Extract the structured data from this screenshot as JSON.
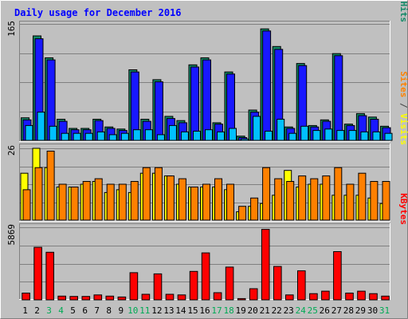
{
  "chart_data": {
    "type": "bar",
    "title": "Daily usage for December 2016",
    "days": [
      "1",
      "2",
      "3",
      "4",
      "5",
      "6",
      "7",
      "8",
      "9",
      "10",
      "11",
      "12",
      "13",
      "14",
      "15",
      "16",
      "17",
      "18",
      "19",
      "20",
      "21",
      "22",
      "23",
      "24",
      "25",
      "26",
      "27",
      "28",
      "29",
      "30",
      "31"
    ],
    "weekend_days": [
      "3",
      "4",
      "10",
      "11",
      "17",
      "18",
      "24",
      "25",
      "31"
    ],
    "panels": [
      {
        "id": "top",
        "max_label": "165",
        "ylim": [
          0,
          165
        ],
        "right_label_parts": [
          {
            "text": "Pages",
            "color": "#00c0ff"
          },
          {
            "text": " / ",
            "color": "#444444"
          },
          {
            "text": "Files",
            "color": "#1818ff"
          },
          {
            "text": " / ",
            "color": "#444444"
          },
          {
            "text": "Hits",
            "color": "#118866"
          }
        ],
        "series": [
          {
            "key": "hits",
            "color": "#118866",
            "values": [
              32,
              148,
              117,
              30,
              17,
              17,
              30,
              19,
              16,
              100,
              30,
              86,
              34,
              28,
              107,
              117,
              25,
              97,
              6,
              43,
              158,
              133,
              19,
              109,
              21,
              29,
              123,
              23,
              38,
              33,
              20
            ]
          },
          {
            "key": "files",
            "color": "#1818ff",
            "values": [
              29,
              144,
              114,
              27,
              15,
              15,
              28,
              17,
              14,
              97,
              27,
              83,
              31,
              25,
              104,
              114,
              23,
              94,
              4,
              40,
              155,
              129,
              17,
              106,
              19,
              27,
              120,
              21,
              35,
              30,
              18
            ]
          },
          {
            "key": "pages",
            "color": "#00c0ff",
            "values": [
              21,
              40,
              20,
              10,
              10,
              10,
              12,
              8,
              10,
              15,
              15,
              8,
              21,
              12,
              13,
              15,
              12,
              17,
              2,
              34,
              13,
              30,
              10,
              20,
              14,
              16,
              14,
              14,
              12,
              12,
              10
            ]
          }
        ]
      },
      {
        "id": "middle",
        "max_label": "26",
        "ylim": [
          0,
          26
        ],
        "right_label_parts": [
          {
            "text": "Sites",
            "color": "#ff8000"
          },
          {
            "text": " / ",
            "color": "#444444"
          },
          {
            "text": "Visits",
            "color": "#ffff00"
          }
        ],
        "series": [
          {
            "key": "visits",
            "color": "#ffff00",
            "values": [
              17,
              26,
              19,
              12,
              12,
              13,
              14,
              10,
              11,
              10,
              17,
              17,
              16,
              13,
              12,
              12,
              12,
              11,
              3,
              5,
              6,
              9,
              18,
              12,
              13,
              13,
              9,
              9,
              9,
              8,
              6
            ]
          },
          {
            "key": "sites",
            "color": "#ff8000",
            "values": [
              11,
              19,
              25,
              13,
              12,
              14,
              15,
              13,
              13,
              14,
              19,
              19,
              16,
              15,
              12,
              13,
              15,
              13,
              5,
              8,
              19,
              15,
              14,
              16,
              15,
              16,
              19,
              13,
              17,
              14,
              14
            ]
          }
        ]
      },
      {
        "id": "bottom",
        "max_label": "5869",
        "ylim": [
          0,
          5869
        ],
        "right_label_parts": [
          {
            "text": "KBytes",
            "color": "#ff0000"
          }
        ],
        "series": [
          {
            "key": "kbytes",
            "color": "#ff0000",
            "values": [
              550,
              4250,
              3850,
              300,
              280,
              280,
              400,
              300,
              230,
              2200,
              450,
              2100,
              450,
              400,
              2300,
              3800,
              580,
              2650,
              100,
              900,
              5700,
              2700,
              400,
              2350,
              500,
              700,
              3900,
              550,
              700,
              500,
              300
            ]
          }
        ]
      }
    ]
  }
}
